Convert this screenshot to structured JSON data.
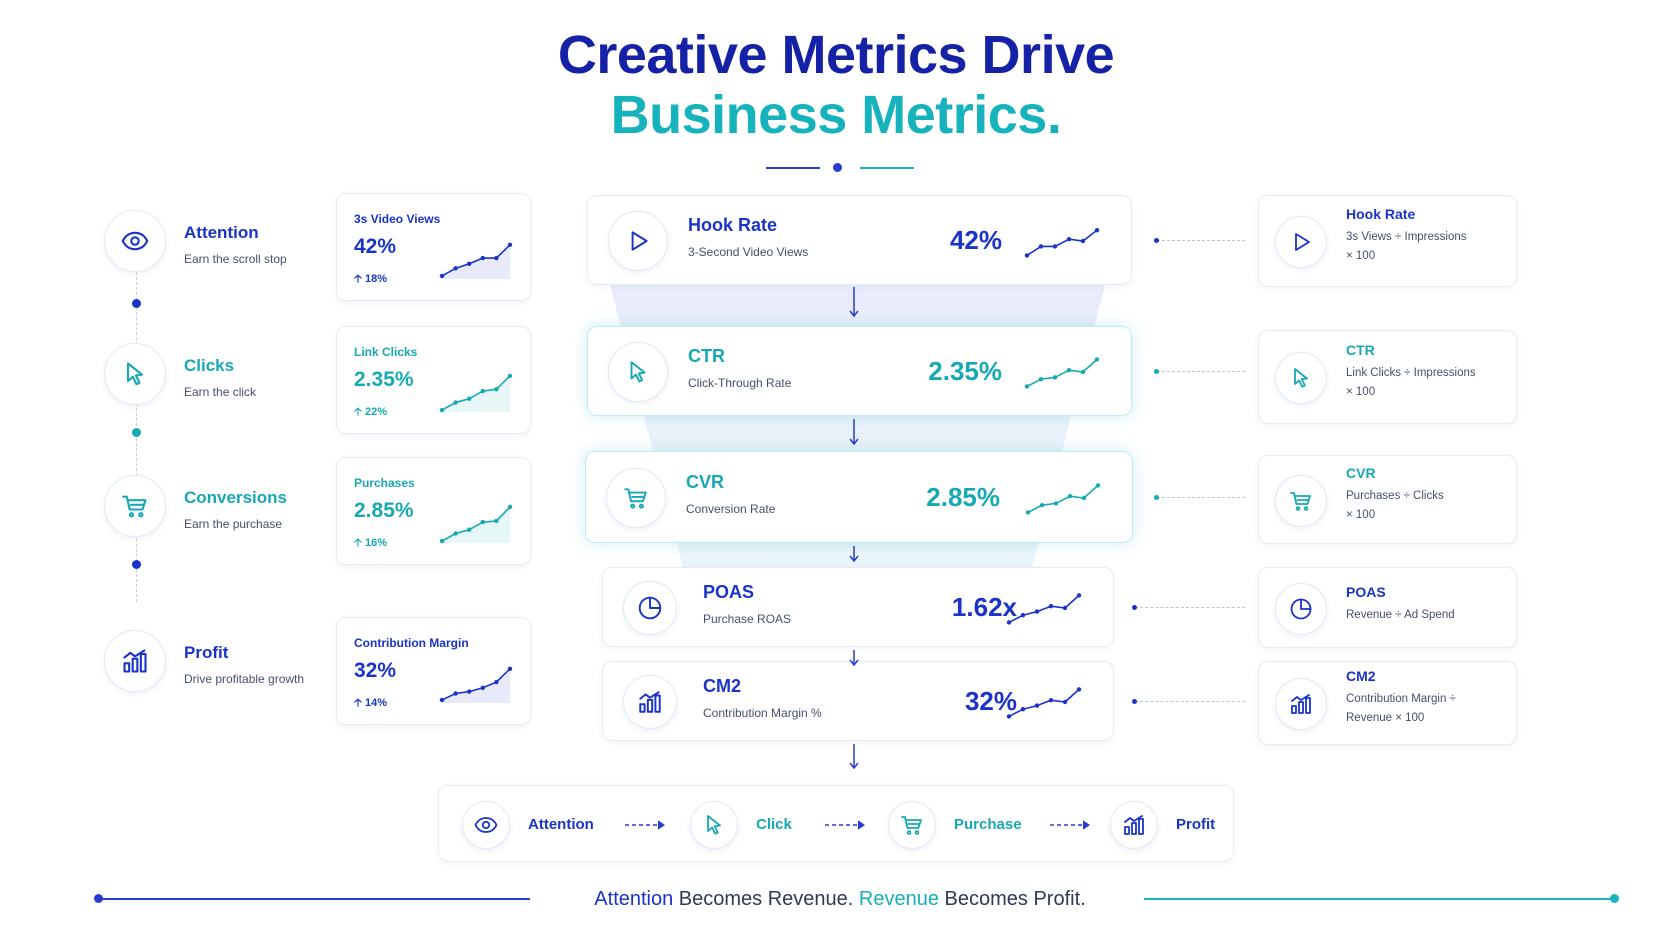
{
  "title_line1": "Creative Metrics Drive",
  "title_line2": "Business Metrics.",
  "colors": {
    "navy": "#1622a6",
    "blue": "#1a33c8",
    "teal": "#17b3bc",
    "text": "#46506a"
  },
  "stages": [
    {
      "icon": "eye-icon",
      "title": "Attention",
      "subtitle": "Earn the scroll stop",
      "color": "#1a33c8",
      "metric_label": "3s Video Views",
      "metric_value": "42%",
      "delta": "18%"
    },
    {
      "icon": "cursor-icon",
      "title": "Clicks",
      "subtitle": "Earn the click",
      "color": "#17a9b3",
      "metric_label": "Link Clicks",
      "metric_value": "2.35%",
      "delta": "22%"
    },
    {
      "icon": "cart-icon",
      "title": "Conversions",
      "subtitle": "Earn the purchase",
      "color": "#17a9b3",
      "metric_label": "Purchases",
      "metric_value": "2.85%",
      "delta": "16%"
    },
    {
      "icon": "bar-chart-icon",
      "title": "Profit",
      "subtitle": "Drive profitable growth",
      "color": "#1a33c8",
      "metric_label": "Contribution Margin",
      "metric_value": "32%",
      "delta": "14%"
    }
  ],
  "funnel": [
    {
      "icon": "play-icon",
      "title": "Hook Rate",
      "subtitle": "3-Second Video Views",
      "value": "42%",
      "color": "#1a33c8"
    },
    {
      "icon": "cursor-icon",
      "title": "CTR",
      "subtitle": "Click-Through Rate",
      "value": "2.35%",
      "color": "#17a9b3"
    },
    {
      "icon": "cart-icon",
      "title": "CVR",
      "subtitle": "Conversion Rate",
      "value": "2.85%",
      "color": "#17a9b3"
    },
    {
      "icon": "pie-chart-icon",
      "title": "POAS",
      "subtitle": "Purchase ROAS",
      "value": "1.62x",
      "color": "#1a33c8"
    },
    {
      "icon": "bar-chart-icon",
      "title": "CM2",
      "subtitle": "Contribution Margin %",
      "value": "32%",
      "color": "#1a33c8"
    }
  ],
  "formulas": [
    {
      "icon": "play-icon",
      "title": "Hook Rate",
      "lines": [
        "3s Views ÷ Impressions",
        "× 100"
      ],
      "color": "#1a33c8"
    },
    {
      "icon": "cursor-icon",
      "title": "CTR",
      "lines": [
        "Link Clicks ÷ Impressions",
        "× 100"
      ],
      "color": "#17a9b3"
    },
    {
      "icon": "cart-icon",
      "title": "CVR",
      "lines": [
        "Purchases ÷ Clicks",
        "× 100"
      ],
      "color": "#17a9b3"
    },
    {
      "icon": "pie-chart-icon",
      "title": "POAS",
      "lines": [
        "Revenue ÷ Ad Spend"
      ],
      "color": "#1a33c8"
    },
    {
      "icon": "bar-chart-icon",
      "title": "CM2",
      "lines": [
        "Contribution Margin ÷",
        "Revenue  × 100"
      ],
      "color": "#1a33c8"
    }
  ],
  "flow": [
    {
      "icon": "eye-icon",
      "label": "Attention",
      "color": "#1a33c8"
    },
    {
      "icon": "cursor-icon",
      "label": "Click",
      "color": "#17a9b3"
    },
    {
      "icon": "cart-icon",
      "label": "Purchase",
      "color": "#17a9b3"
    },
    {
      "icon": "bar-chart-icon",
      "label": "Profit",
      "color": "#1a33c8"
    }
  ],
  "footer": {
    "w1": "Attention",
    "w2": " Becomes Revenue. ",
    "w3": "Revenue",
    "w4": " Becomes Profit."
  }
}
